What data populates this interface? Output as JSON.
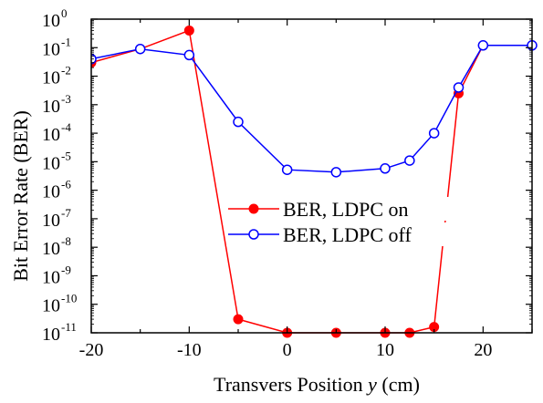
{
  "chart_data": {
    "type": "line",
    "title": "",
    "xlabel": "Transvers Position y (cm)",
    "xlabel_parts": [
      "Transvers Position ",
      "y",
      " (cm)"
    ],
    "ylabel": "Bit Error Rate (BER)",
    "xlim": [
      -20,
      25
    ],
    "ylim_log10": [
      -11,
      0
    ],
    "yscale": "log",
    "x_ticks": [
      -20,
      -10,
      0,
      10,
      20
    ],
    "x_tick_labels": [
      "-20",
      "-10",
      "0",
      "10",
      "20"
    ],
    "y_tick_exponents": [
      0,
      -1,
      -2,
      -3,
      -4,
      -5,
      -6,
      -7,
      -8,
      -9,
      -10,
      -11
    ],
    "y_tick_base": "10",
    "grid": false,
    "legend_position": "center",
    "series": [
      {
        "name": "BER, LDPC on",
        "color": "#ff0000",
        "marker": "filled-circle",
        "x": [
          -20,
          -15,
          -10,
          -5,
          0,
          5,
          10,
          12.5,
          15,
          17.5,
          20,
          25
        ],
        "y": [
          0.03,
          0.09,
          0.4,
          3e-11,
          1e-11,
          1e-11,
          1e-11,
          1e-11,
          1.6e-11,
          0.0025,
          0.12,
          0.12
        ]
      },
      {
        "name": "BER, LDPC off",
        "color": "#0000ff",
        "marker": "open-circle",
        "x": [
          -20,
          -15,
          -10,
          -5,
          0,
          5,
          10,
          12.5,
          15,
          17.5,
          20,
          25
        ],
        "y": [
          0.04,
          0.09,
          0.055,
          0.00025,
          5.2e-06,
          4.3e-06,
          5.8e-06,
          1.1e-05,
          0.0001,
          0.004,
          0.12,
          0.12
        ]
      }
    ]
  }
}
